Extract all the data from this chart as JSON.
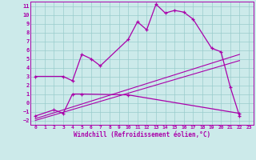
{
  "xlabel": "Windchill (Refroidissement éolien,°C)",
  "bg_color": "#cceaea",
  "line_color": "#aa00aa",
  "grid_color": "#99cccc",
  "xlim": [
    -0.5,
    23.5
  ],
  "ylim": [
    -2.5,
    11.5
  ],
  "xticks": [
    0,
    1,
    2,
    3,
    4,
    5,
    6,
    7,
    8,
    9,
    10,
    11,
    12,
    13,
    14,
    15,
    16,
    17,
    18,
    19,
    20,
    21,
    22,
    23
  ],
  "yticks": [
    -2,
    -1,
    0,
    1,
    2,
    3,
    4,
    5,
    6,
    7,
    8,
    9,
    10,
    11
  ],
  "main_curve_x": [
    0,
    3,
    4,
    5,
    6,
    7,
    10,
    11,
    12,
    13,
    14,
    15,
    16,
    17,
    19,
    20,
    21,
    22
  ],
  "main_curve_y": [
    3.0,
    3.0,
    2.5,
    5.5,
    5.0,
    4.2,
    7.2,
    9.2,
    8.3,
    11.2,
    10.2,
    10.5,
    10.3,
    9.5,
    6.2,
    5.8,
    1.8,
    -1.5
  ],
  "secondary_curve_x": [
    0,
    2,
    3,
    4,
    5,
    10,
    22
  ],
  "secondary_curve_y": [
    -1.5,
    -0.8,
    -1.2,
    1.0,
    1.0,
    0.9,
    -1.2
  ],
  "line1_x": [
    0,
    22
  ],
  "line1_y": [
    -1.8,
    5.5
  ],
  "line2_x": [
    0,
    22
  ],
  "line2_y": [
    -2.0,
    4.8
  ]
}
